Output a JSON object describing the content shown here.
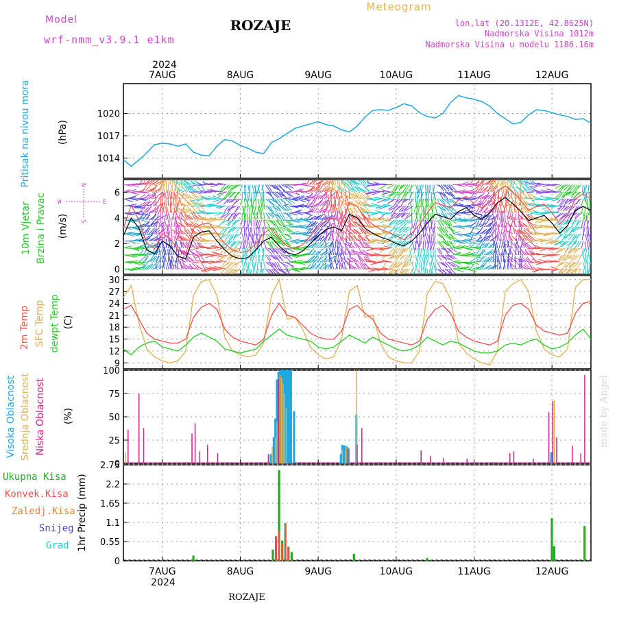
{
  "header": {
    "model_label": "Model",
    "model_value": "wrf-nmm_v3.9.1  e1km",
    "station_title": "ROZAJE",
    "meteogram_label": "Meteogram",
    "lonlat": "lon,lat (20.1312E, 42.8625N)",
    "elevation": "Nadmorska Visina 1012m",
    "model_elevation": "Nadmorska Visina u modelu 1186.16m"
  },
  "time_axis": {
    "year": "2024",
    "dates": [
      "7AUG",
      "8AUG",
      "9AUG",
      "10AUG",
      "11AUG",
      "12AUG"
    ],
    "bottom_station": "ROZAJE"
  },
  "watermark": "made by Angel",
  "colors": {
    "pressure": "#1fa8e0",
    "temp2m": "#f0504a",
    "sfc_temp": "#e0b050",
    "dewpoint": "#22cc22",
    "wind_black": "#000000",
    "wind_magenta": "#cc44cc",
    "high_cloud": "#1fa8e0",
    "mid_cloud": "#e0b050",
    "low_cloud": "#cc2288",
    "total_precip": "#22aa22",
    "conv_precip": "#f0504a",
    "frozen_precip": "#f08030",
    "snow": "#4444dd",
    "graupel": "#22cccc"
  },
  "chart_data": [
    {
      "panel": "pressure",
      "type": "line",
      "ylabel_name": "Pritisak na nivou mora",
      "ylabel_unit": "(hPa)",
      "yticks": [
        "1014",
        "1017",
        "1020"
      ],
      "ylim": [
        1011.3,
        1024
      ],
      "x_days": [
        6.5,
        12.5
      ],
      "x": [
        6.5,
        6.6,
        6.75,
        6.9,
        7.0,
        7.1,
        7.2,
        7.3,
        7.4,
        7.5,
        7.6,
        7.7,
        7.8,
        7.9,
        8.0,
        8.1,
        8.2,
        8.3,
        8.4,
        8.5,
        8.6,
        8.7,
        8.8,
        8.9,
        9.0,
        9.1,
        9.2,
        9.3,
        9.4,
        9.5,
        9.6,
        9.7,
        9.8,
        9.9,
        10.0,
        10.1,
        10.2,
        10.3,
        10.4,
        10.5,
        10.6,
        10.7,
        10.8,
        10.9,
        11.0,
        11.1,
        11.2,
        11.3,
        11.4,
        11.5,
        11.6,
        11.7,
        11.8,
        11.9,
        12.0,
        12.1,
        12.2,
        12.3,
        12.4,
        12.5
      ],
      "y": [
        1013.8,
        1012.9,
        1014.2,
        1015.8,
        1016.0,
        1015.9,
        1015.6,
        1015.9,
        1014.8,
        1014.4,
        1014.3,
        1015.6,
        1016.5,
        1016.3,
        1015.7,
        1015.3,
        1014.8,
        1014.6,
        1016.1,
        1016.6,
        1017.3,
        1018.0,
        1018.3,
        1018.6,
        1018.9,
        1018.5,
        1018.3,
        1017.8,
        1017.5,
        1018.3,
        1019.5,
        1020.4,
        1020.5,
        1020.4,
        1020.8,
        1021.3,
        1021.0,
        1020.1,
        1019.6,
        1019.4,
        1020.0,
        1021.5,
        1022.4,
        1022.1,
        1021.9,
        1021.6,
        1021.0,
        1020.0,
        1019.3,
        1018.6,
        1018.8,
        1019.8,
        1020.5,
        1020.4,
        1020.1,
        1019.8,
        1019.6,
        1019.2,
        1019.3,
        1018.7
      ]
    },
    {
      "panel": "wind",
      "type": "line",
      "ylabel_name": "10m Vjetar",
      "ylabel_name2": "Brzina i Pravac",
      "ylabel_unit": "(m/s)",
      "compass": {
        "n": "N",
        "s": "S",
        "w": "W",
        "e": "E"
      },
      "yticks": [
        "0",
        "2",
        "4",
        "6"
      ],
      "ylim": [
        -0.4,
        7.0
      ],
      "x_days": [
        6.5,
        12.5
      ],
      "series": [
        {
          "name": "",
          "color": "black",
          "x": [
            6.5,
            6.6,
            6.7,
            6.8,
            6.9,
            7.0,
            7.1,
            7.2,
            7.3,
            7.4,
            7.5,
            7.6,
            7.7,
            7.8,
            7.9,
            8.0,
            8.1,
            8.2,
            8.3,
            8.4,
            8.5,
            8.6,
            8.7,
            8.8,
            8.9,
            9.0,
            9.1,
            9.2,
            9.3,
            9.4,
            9.5,
            9.6,
            9.7,
            9.8,
            9.9,
            10.0,
            10.1,
            10.2,
            10.3,
            10.4,
            10.5,
            10.6,
            10.7,
            10.8,
            10.9,
            11.0,
            11.1,
            11.2,
            11.3,
            11.4,
            11.5,
            11.6,
            11.7,
            11.8,
            11.9,
            12.0,
            12.1,
            12.2,
            12.3,
            12.4,
            12.5
          ],
          "y": [
            2.6,
            4.0,
            3.2,
            1.5,
            1.2,
            2.2,
            1.8,
            1.0,
            0.8,
            2.5,
            2.9,
            3.0,
            2.2,
            1.5,
            1.0,
            0.8,
            0.9,
            1.5,
            2.2,
            2.5,
            1.8,
            1.3,
            1.1,
            1.4,
            2.0,
            2.6,
            3.1,
            3.3,
            3.0,
            4.3,
            4.0,
            3.2,
            2.8,
            2.5,
            2.3,
            2.0,
            1.8,
            2.2,
            2.8,
            3.6,
            4.3,
            4.1,
            3.9,
            4.5,
            4.8,
            4.2,
            3.9,
            4.4,
            5.2,
            5.6,
            5.1,
            4.5,
            3.8,
            4.0,
            4.2,
            3.6,
            2.8,
            3.4,
            4.6,
            4.9,
            4.6
          ]
        },
        {
          "name": "",
          "color": "red",
          "x": [
            6.5,
            6.6,
            6.7,
            6.8,
            6.9,
            7.0,
            7.1,
            7.2,
            7.3,
            7.4,
            7.5,
            7.6,
            7.7,
            7.8,
            7.9,
            8.0,
            8.1,
            8.2,
            8.3,
            8.4,
            8.5,
            8.6,
            8.7,
            8.8,
            8.9,
            9.0,
            9.1,
            9.2,
            9.3,
            9.4,
            9.5,
            9.6,
            9.7,
            9.8,
            9.9,
            10.0,
            10.1,
            10.2,
            10.3,
            10.4,
            10.5,
            10.6,
            10.7,
            10.8,
            10.9,
            11.0,
            11.1,
            11.2,
            11.3,
            11.4,
            11.5,
            11.6,
            11.7,
            11.8,
            11.9,
            12.0,
            12.1,
            12.2,
            12.3,
            12.4,
            12.5
          ],
          "y": [
            3.2,
            5.0,
            3.8,
            2.0,
            1.6,
            2.8,
            2.4,
            1.5,
            1.2,
            3.2,
            3.5,
            3.6,
            2.8,
            2.0,
            1.5,
            1.3,
            1.4,
            2.0,
            2.8,
            3.2,
            2.4,
            1.8,
            1.6,
            1.9,
            2.6,
            3.3,
            3.8,
            4.0,
            3.6,
            5.2,
            4.9,
            4.0,
            3.5,
            3.1,
            2.9,
            2.6,
            2.3,
            2.8,
            3.5,
            4.4,
            5.2,
            5.0,
            4.8,
            5.4,
            5.7,
            5.1,
            4.8,
            5.3,
            6.1,
            6.5,
            6.0,
            5.4,
            4.6,
            4.9,
            5.1,
            4.4,
            3.5,
            4.2,
            5.5,
            5.9,
            5.5
          ]
        }
      ]
    },
    {
      "panel": "temperature",
      "type": "line",
      "ylabel_t2m": "2m Temp",
      "ylabel_sfc": "SFC Temp",
      "ylabel_dew": "dewpt Temp",
      "ylabel_unit": "(C)",
      "yticks": [
        "9",
        "12",
        "15",
        "18",
        "21",
        "24",
        "27",
        "30"
      ],
      "ylim": [
        7.5,
        31
      ],
      "x_days": [
        6.5,
        12.5
      ],
      "series": [
        {
          "name": "2m Temp",
          "x": [
            6.5,
            6.6,
            6.7,
            6.8,
            6.9,
            7.0,
            7.1,
            7.2,
            7.3,
            7.4,
            7.5,
            7.6,
            7.7,
            7.8,
            7.9,
            8.0,
            8.1,
            8.2,
            8.3,
            8.4,
            8.5,
            8.6,
            8.7,
            8.8,
            8.9,
            9.0,
            9.1,
            9.2,
            9.3,
            9.4,
            9.5,
            9.6,
            9.7,
            9.8,
            9.9,
            10.0,
            10.1,
            10.2,
            10.3,
            10.4,
            10.5,
            10.6,
            10.7,
            10.8,
            10.9,
            11.0,
            11.1,
            11.2,
            11.3,
            11.4,
            11.5,
            11.6,
            11.7,
            11.8,
            11.9,
            12.0,
            12.1,
            12.2,
            12.3,
            12.4,
            12.5
          ],
          "y": [
            22.5,
            23.5,
            20.0,
            16.5,
            15.0,
            14.5,
            14.0,
            14.0,
            15.0,
            20.5,
            23.0,
            24.0,
            22.5,
            17.5,
            15.5,
            14.5,
            14.0,
            13.5,
            15.0,
            21.0,
            24.0,
            21.0,
            20.5,
            18.5,
            16.5,
            15.5,
            15.0,
            15.0,
            17.0,
            22.5,
            23.5,
            21.5,
            20.0,
            16.5,
            15.0,
            14.5,
            14.0,
            13.5,
            14.5,
            20.0,
            22.5,
            23.5,
            21.5,
            17.0,
            15.5,
            14.5,
            14.0,
            13.5,
            14.5,
            21.0,
            23.5,
            24.0,
            22.5,
            18.5,
            17.0,
            16.5,
            16.0,
            16.5,
            21.5,
            24.0,
            24.5
          ]
        },
        {
          "name": "SFC Temp",
          "x": [
            6.5,
            6.6,
            6.7,
            6.8,
            6.9,
            7.0,
            7.1,
            7.2,
            7.3,
            7.4,
            7.5,
            7.6,
            7.7,
            7.8,
            7.9,
            8.0,
            8.1,
            8.2,
            8.3,
            8.4,
            8.5,
            8.6,
            8.7,
            8.8,
            8.9,
            9.0,
            9.1,
            9.2,
            9.3,
            9.4,
            9.5,
            9.6,
            9.7,
            9.8,
            9.9,
            10.0,
            10.1,
            10.2,
            10.3,
            10.4,
            10.5,
            10.6,
            10.7,
            10.8,
            10.9,
            11.0,
            11.1,
            11.2,
            11.3,
            11.4,
            11.5,
            11.6,
            11.7,
            11.8,
            11.9,
            12.0,
            12.1,
            12.2,
            12.3,
            12.4,
            12.5
          ],
          "y": [
            25.5,
            28.5,
            19.0,
            12.5,
            10.5,
            9.5,
            9.0,
            9.5,
            12.0,
            26.0,
            29.5,
            30.0,
            26.0,
            15.5,
            12.0,
            11.0,
            10.5,
            11.0,
            14.0,
            26.0,
            30.0,
            20.0,
            20.5,
            17.5,
            13.0,
            11.0,
            10.0,
            10.5,
            15.0,
            27.0,
            28.5,
            20.5,
            21.0,
            14.0,
            10.5,
            9.5,
            9.0,
            9.0,
            12.0,
            26.5,
            29.5,
            29.0,
            25.0,
            14.0,
            11.5,
            10.0,
            9.0,
            8.5,
            12.0,
            27.0,
            29.0,
            30.0,
            27.0,
            17.0,
            12.5,
            11.0,
            10.5,
            12.5,
            28.0,
            30.0,
            30.0
          ]
        },
        {
          "name": "dewpt Temp",
          "x": [
            6.5,
            6.6,
            6.7,
            6.8,
            6.9,
            7.0,
            7.1,
            7.2,
            7.3,
            7.4,
            7.5,
            7.6,
            7.7,
            7.8,
            7.9,
            8.0,
            8.1,
            8.2,
            8.3,
            8.4,
            8.5,
            8.6,
            8.7,
            8.8,
            8.9,
            9.0,
            9.1,
            9.2,
            9.3,
            9.4,
            9.5,
            9.6,
            9.7,
            9.8,
            9.9,
            10.0,
            10.1,
            10.2,
            10.3,
            10.4,
            10.5,
            10.6,
            10.7,
            10.8,
            10.9,
            11.0,
            11.1,
            11.2,
            11.3,
            11.4,
            11.5,
            11.6,
            11.7,
            11.8,
            11.9,
            12.0,
            12.1,
            12.2,
            12.3,
            12.4,
            12.5
          ],
          "y": [
            12.5,
            11.0,
            13.0,
            14.0,
            14.5,
            13.0,
            12.5,
            12.0,
            13.5,
            15.5,
            16.5,
            15.5,
            14.5,
            12.5,
            12.0,
            11.5,
            12.0,
            12.5,
            14.5,
            16.0,
            17.5,
            16.0,
            15.5,
            15.0,
            14.5,
            13.0,
            12.5,
            13.0,
            14.5,
            16.0,
            15.0,
            14.0,
            15.5,
            14.5,
            13.5,
            12.5,
            12.0,
            12.5,
            13.5,
            15.5,
            14.5,
            13.5,
            14.5,
            14.0,
            13.0,
            12.0,
            11.5,
            11.5,
            12.0,
            13.5,
            14.0,
            13.5,
            14.5,
            15.0,
            13.5,
            12.5,
            13.0,
            14.0,
            16.0,
            17.5,
            15.0
          ]
        }
      ]
    },
    {
      "panel": "cloud",
      "type": "bar",
      "ylabel_high": "Visoka Oblacnost",
      "ylabel_mid": "Srednja Oblacnost",
      "ylabel_low": "Niska Oblacnost",
      "ylabel_unit": "(%)",
      "yticks": [
        "0",
        "25",
        "50",
        "75",
        "100"
      ],
      "ylim": [
        0,
        100
      ],
      "x_days": [
        6.5,
        12.5
      ],
      "series": [
        {
          "name": "Visoka Oblacnost",
          "x": [
            8.39,
            8.43,
            8.45,
            8.47,
            8.49,
            8.51,
            8.53,
            8.55,
            8.57,
            8.59,
            8.61,
            8.63,
            8.65,
            8.69,
            9.29,
            9.31,
            9.33,
            9.35,
            9.37,
            9.39,
            9.49,
            11.99
          ],
          "y": [
            10,
            28,
            48,
            90,
            98,
            100,
            100,
            100,
            100,
            100,
            100,
            100,
            100,
            56,
            10,
            20,
            19,
            19,
            18,
            16,
            52,
            12
          ]
        },
        {
          "name": "Srednja Oblacnost",
          "x": [
            6.53,
            8.41,
            8.45,
            8.47,
            8.49,
            8.51,
            8.53,
            8.55,
            8.57,
            8.59,
            9.31,
            9.35,
            9.37,
            9.49,
            12.03
          ],
          "y": [
            12,
            18,
            28,
            45,
            88,
            95,
            92,
            85,
            75,
            60,
            15,
            18,
            17,
            100,
            68
          ]
        },
        {
          "name": "Niska Oblacnost",
          "x": [
            6.56,
            6.7,
            6.76,
            7.38,
            7.42,
            7.48,
            7.58,
            7.71,
            8.36,
            8.49,
            9.38,
            9.5,
            9.56,
            10.32,
            10.44,
            10.61,
            10.91,
            11.46,
            11.51,
            11.76,
            11.96,
            12.01,
            12.06,
            12.26,
            12.37,
            12.42
          ],
          "y": [
            36,
            75,
            38,
            32,
            43,
            13,
            20,
            11,
            10,
            90,
            16,
            20,
            38,
            14,
            8,
            6,
            5,
            11,
            13,
            5,
            55,
            67,
            28,
            19,
            11,
            95
          ]
        }
      ]
    },
    {
      "panel": "precip",
      "type": "bar",
      "legend": [
        "Ukupna Kisa",
        "Konvek.Kisa",
        "Zaledj.Kisa",
        "Snijeg",
        "Grad"
      ],
      "ylabel": "1hr Precip (mm)",
      "yticks": [
        "0",
        "0.55",
        "1.1",
        "1.65",
        "2.2",
        "2.75"
      ],
      "ylim": [
        0,
        2.75
      ],
      "x_days": [
        6.5,
        12.5
      ],
      "series": [
        {
          "name": "Ukupna Kisa",
          "x": [
            7.4,
            8.42,
            8.46,
            8.5,
            8.54,
            8.58,
            8.62,
            8.66,
            9.46,
            10.4,
            12.0,
            12.03,
            12.42
          ],
          "y": [
            0.15,
            0.32,
            0.7,
            2.6,
            0.58,
            1.08,
            0.4,
            0.25,
            0.2,
            0.08,
            1.22,
            0.42,
            1.0
          ]
        },
        {
          "name": "Konvek.Kisa",
          "x": [
            8.46,
            8.5,
            8.54,
            8.58,
            8.62
          ],
          "y": [
            0.7,
            0.85,
            0.5,
            1.05,
            0.35
          ]
        }
      ]
    }
  ]
}
